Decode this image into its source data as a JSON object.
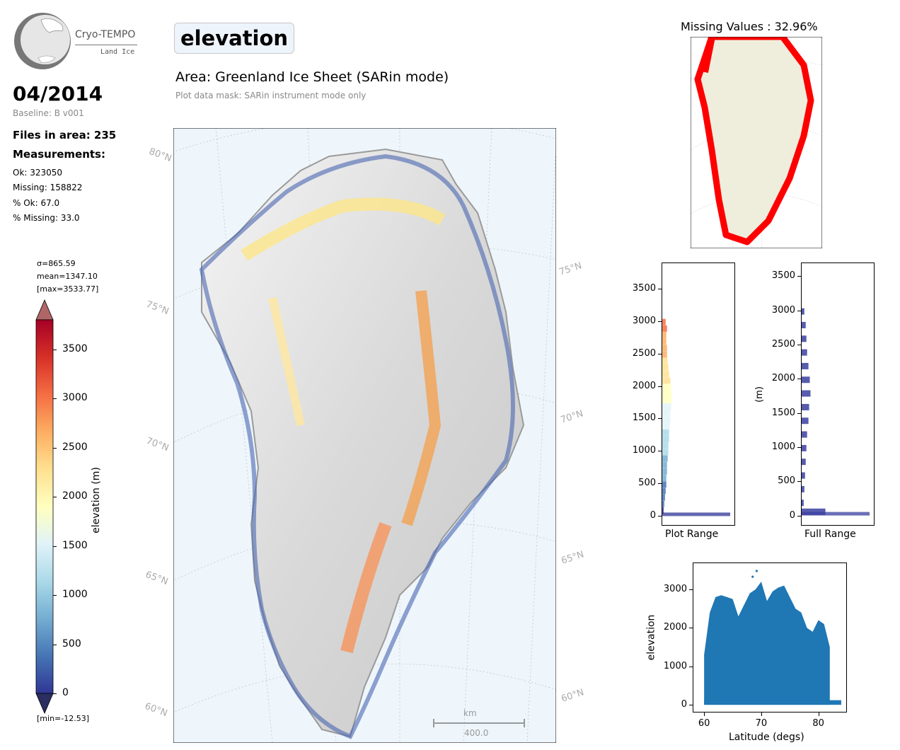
{
  "logo": {
    "title": "Cryo-TEMPO",
    "subtitle": "Land Ice"
  },
  "header": {
    "parameter": "elevation",
    "area_title": "Area: Greenland Ice Sheet (SARin mode)",
    "mask_note": "Plot data mask: SARin instrument mode only"
  },
  "left_panel": {
    "date": "04/2014",
    "baseline": "Baseline: B v001",
    "files": "Files in area: 235",
    "measurements_heading": "Measurements:",
    "ok": "Ok: 323050",
    "missing": "Missing: 158822",
    "pct_ok": "% Ok: 67.0",
    "pct_missing": "% Missing: 33.0"
  },
  "colorbar": {
    "sigma": "σ=865.59",
    "mean": "mean=1347.10",
    "max": "[max=3533.77]",
    "min": "[min=-12.53]",
    "label": "elevation (m)",
    "ticks": [
      "0",
      "500",
      "1000",
      "1500",
      "2000",
      "2500",
      "3000",
      "3500"
    ],
    "range": [
      0,
      3800
    ]
  },
  "map": {
    "lat_labels_left": [
      "80°N",
      "75°N",
      "70°N",
      "65°N",
      "60°N"
    ],
    "lat_labels_right": [
      "75°N",
      "70°N",
      "65°N",
      "60°N"
    ],
    "scalebar_unit": "km",
    "scalebar_value": "400.0"
  },
  "missing_map": {
    "title": "Missing Values : 32.96%"
  },
  "chart_data": [
    {
      "type": "bar",
      "name": "plot-range-histogram",
      "xlabel": "Plot Range",
      "ylabel": "",
      "yticks": [
        "0",
        "500",
        "1000",
        "1500",
        "2000",
        "2500",
        "3000",
        "3500"
      ],
      "ylim": [
        -150,
        3900
      ],
      "bins": [
        {
          "y": 20,
          "v": 1.0
        },
        {
          "y": 100,
          "v": 0.02
        },
        {
          "y": 200,
          "v": 0.03
        },
        {
          "y": 300,
          "v": 0.04
        },
        {
          "y": 400,
          "v": 0.05
        },
        {
          "y": 500,
          "v": 0.06
        },
        {
          "y": 600,
          "v": 0.06
        },
        {
          "y": 700,
          "v": 0.07
        },
        {
          "y": 800,
          "v": 0.07
        },
        {
          "y": 900,
          "v": 0.08
        },
        {
          "y": 1000,
          "v": 0.09
        },
        {
          "y": 1100,
          "v": 0.09
        },
        {
          "y": 1200,
          "v": 0.1
        },
        {
          "y": 1300,
          "v": 0.1
        },
        {
          "y": 1400,
          "v": 0.11
        },
        {
          "y": 1500,
          "v": 0.12
        },
        {
          "y": 1600,
          "v": 0.12
        },
        {
          "y": 1700,
          "v": 0.13
        },
        {
          "y": 1800,
          "v": 0.14
        },
        {
          "y": 1900,
          "v": 0.14
        },
        {
          "y": 2000,
          "v": 0.13
        },
        {
          "y": 2100,
          "v": 0.12
        },
        {
          "y": 2200,
          "v": 0.1
        },
        {
          "y": 2300,
          "v": 0.09
        },
        {
          "y": 2400,
          "v": 0.08
        },
        {
          "y": 2500,
          "v": 0.07
        },
        {
          "y": 2600,
          "v": 0.07
        },
        {
          "y": 2700,
          "v": 0.06
        },
        {
          "y": 2800,
          "v": 0.06
        },
        {
          "y": 2900,
          "v": 0.07
        },
        {
          "y": 3000,
          "v": 0.05
        }
      ]
    },
    {
      "type": "bar",
      "name": "full-range-histogram",
      "xlabel": "Full Range",
      "ylabel": "(m)",
      "yticks": [
        "0",
        "500",
        "1000",
        "1500",
        "2000",
        "2500",
        "3000",
        "3500"
      ],
      "ylim": [
        -150,
        3700
      ],
      "color": "#3a3fa0",
      "bins": [
        {
          "y": 20,
          "v": 1.0
        },
        {
          "y": 70,
          "v": 0.35
        },
        {
          "y": 200,
          "v": 0.03
        },
        {
          "y": 400,
          "v": 0.04
        },
        {
          "y": 600,
          "v": 0.05
        },
        {
          "y": 800,
          "v": 0.06
        },
        {
          "y": 1000,
          "v": 0.07
        },
        {
          "y": 1200,
          "v": 0.08
        },
        {
          "y": 1400,
          "v": 0.1
        },
        {
          "y": 1600,
          "v": 0.11
        },
        {
          "y": 1800,
          "v": 0.13
        },
        {
          "y": 2000,
          "v": 0.12
        },
        {
          "y": 2200,
          "v": 0.1
        },
        {
          "y": 2400,
          "v": 0.08
        },
        {
          "y": 2600,
          "v": 0.07
        },
        {
          "y": 2800,
          "v": 0.06
        },
        {
          "y": 3000,
          "v": 0.04
        }
      ]
    },
    {
      "type": "scatter",
      "name": "elevation-vs-latitude",
      "xlabel": "Latitude (degs)",
      "ylabel": "elevation",
      "xticks": [
        "60",
        "70",
        "80"
      ],
      "yticks": [
        "0",
        "1000",
        "2000",
        "3000"
      ],
      "xlim": [
        58,
        85
      ],
      "ylim": [
        -200,
        3700
      ],
      "color": "#1f77b4",
      "envelope": [
        [
          60,
          1300
        ],
        [
          61,
          2400
        ],
        [
          62,
          2800
        ],
        [
          63,
          2850
        ],
        [
          64,
          2800
        ],
        [
          65,
          2750
        ],
        [
          66,
          2300
        ],
        [
          67,
          2600
        ],
        [
          68,
          2900
        ],
        [
          69,
          3000
        ],
        [
          70,
          3200
        ],
        [
          71,
          2700
        ],
        [
          72,
          2950
        ],
        [
          73,
          3050
        ],
        [
          74,
          3100
        ],
        [
          75,
          2800
        ],
        [
          76,
          2500
        ],
        [
          77,
          2400
        ],
        [
          78,
          2000
        ],
        [
          79,
          1900
        ],
        [
          80,
          2200
        ],
        [
          81,
          2100
        ],
        [
          82,
          1500
        ]
      ],
      "outliers": [
        [
          69.2,
          3480
        ],
        [
          68.5,
          3330
        ]
      ]
    }
  ]
}
